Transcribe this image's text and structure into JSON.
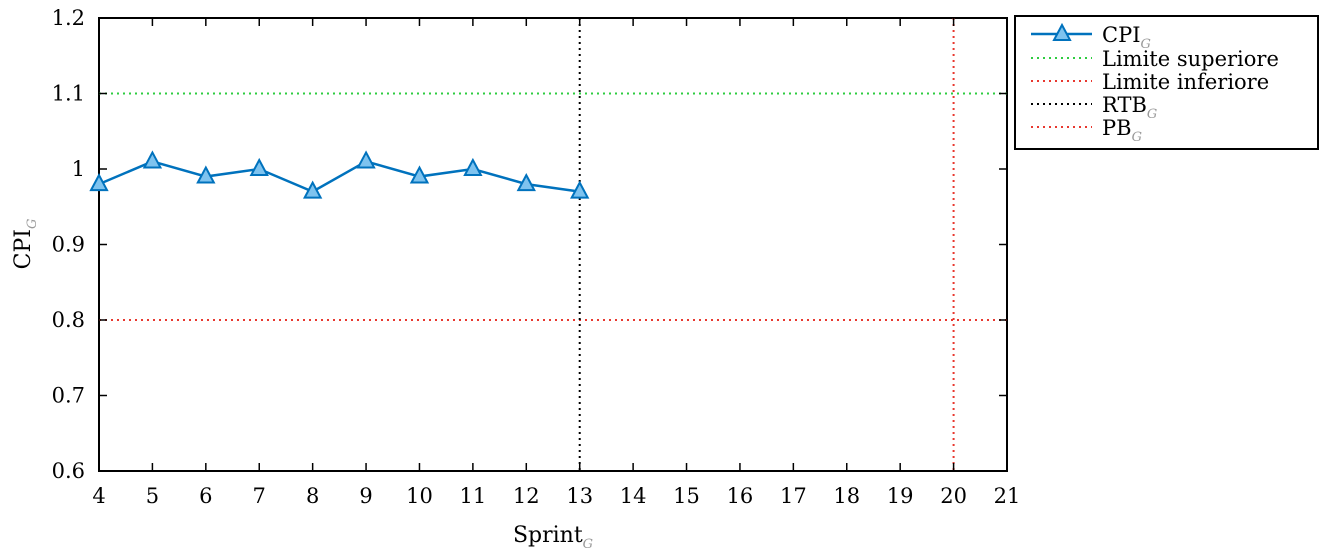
{
  "chart_data": {
    "type": "line",
    "xlabel": "Sprint",
    "xlabel_subscript": "G",
    "ylabel": "CPI",
    "ylabel_subscript": "G",
    "xlim": [
      4,
      21
    ],
    "ylim": [
      0.6,
      1.2
    ],
    "x_ticks": [
      "4",
      "5",
      "6",
      "7",
      "8",
      "9",
      "10",
      "11",
      "12",
      "13",
      "14",
      "15",
      "16",
      "17",
      "18",
      "19",
      "20",
      "21"
    ],
    "y_ticks": [
      "0.6",
      "0.7",
      "0.8",
      "0.9",
      "1",
      "1.1",
      "1.2"
    ],
    "grid": false,
    "legend_position": "outside-top-right",
    "series": [
      {
        "name": "CPI",
        "name_subscript": "G",
        "color": "#0072bd",
        "marker": "triangle",
        "x": [
          4,
          5,
          6,
          7,
          8,
          9,
          10,
          11,
          12,
          13
        ],
        "y": [
          0.98,
          1.01,
          0.99,
          1.0,
          0.97,
          1.01,
          0.99,
          1.0,
          0.98,
          0.97
        ]
      }
    ],
    "reference_lines": [
      {
        "name": "Limite superiore",
        "name_subscript": "",
        "orientation": "horizontal",
        "value": 1.1,
        "color": "#2ecc40",
        "style": "dotted"
      },
      {
        "name": "Limite inferiore",
        "name_subscript": "",
        "orientation": "horizontal",
        "value": 0.8,
        "color": "#e8382f",
        "style": "dotted"
      },
      {
        "name": "RTB",
        "name_subscript": "G",
        "orientation": "vertical",
        "value": 13,
        "color": "#000000",
        "style": "dotted"
      },
      {
        "name": "PB",
        "name_subscript": "G",
        "orientation": "vertical",
        "value": 20,
        "color": "#e8382f",
        "style": "dotted"
      }
    ]
  }
}
